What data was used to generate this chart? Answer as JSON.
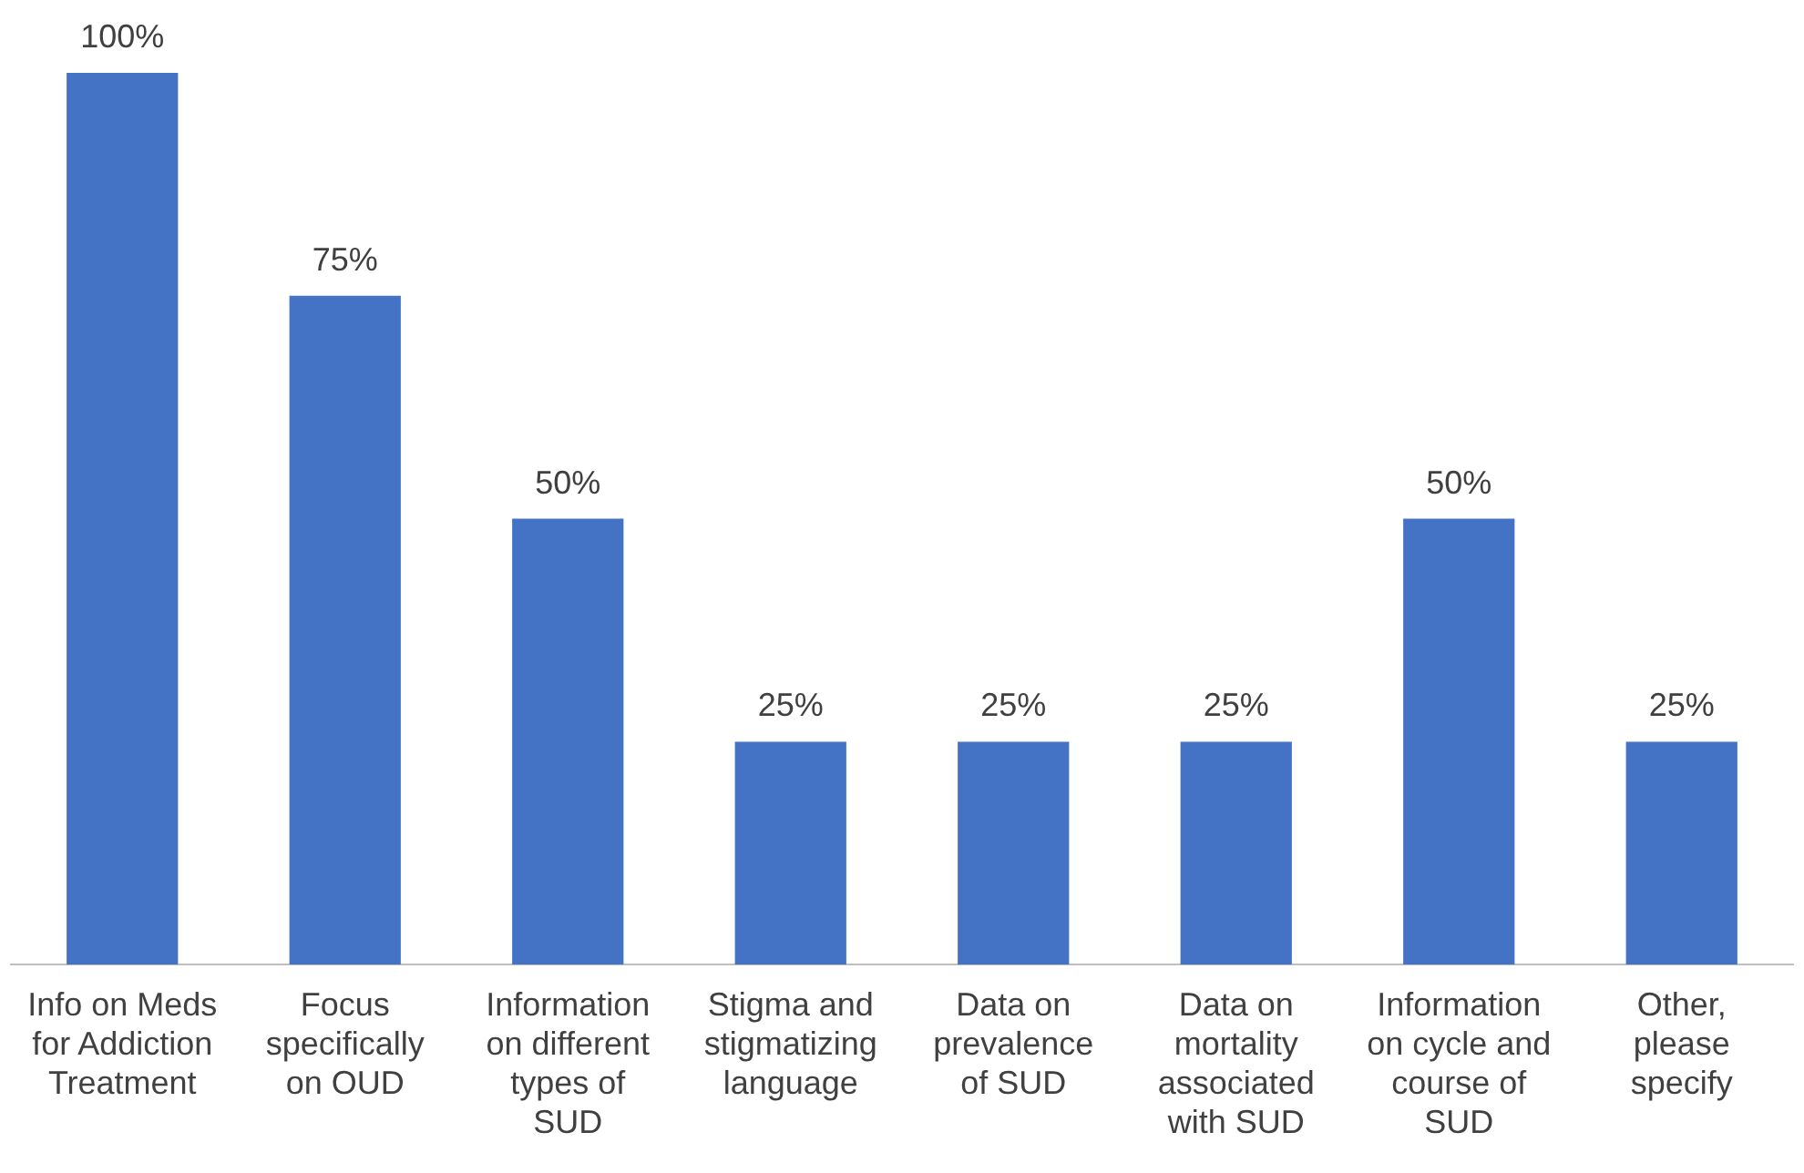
{
  "chart_data": {
    "type": "bar",
    "categories": [
      "Info on Meds for Addiction Treatment",
      "Focus specifically on OUD",
      "Information on different types of SUD",
      "Stigma and stigmatizing language",
      "Data on prevalence of SUD",
      "Data on mortality associated with SUD",
      "Information on cycle and course of SUD",
      "Other, please specify"
    ],
    "values": [
      100,
      75,
      50,
      25,
      25,
      25,
      50,
      25
    ],
    "value_labels": [
      "100%",
      "75%",
      "50%",
      "25%",
      "25%",
      "25%",
      "50%",
      "25%"
    ],
    "color": "#4472c4",
    "grid": false,
    "legend": false,
    "tick_labels": "x"
  }
}
